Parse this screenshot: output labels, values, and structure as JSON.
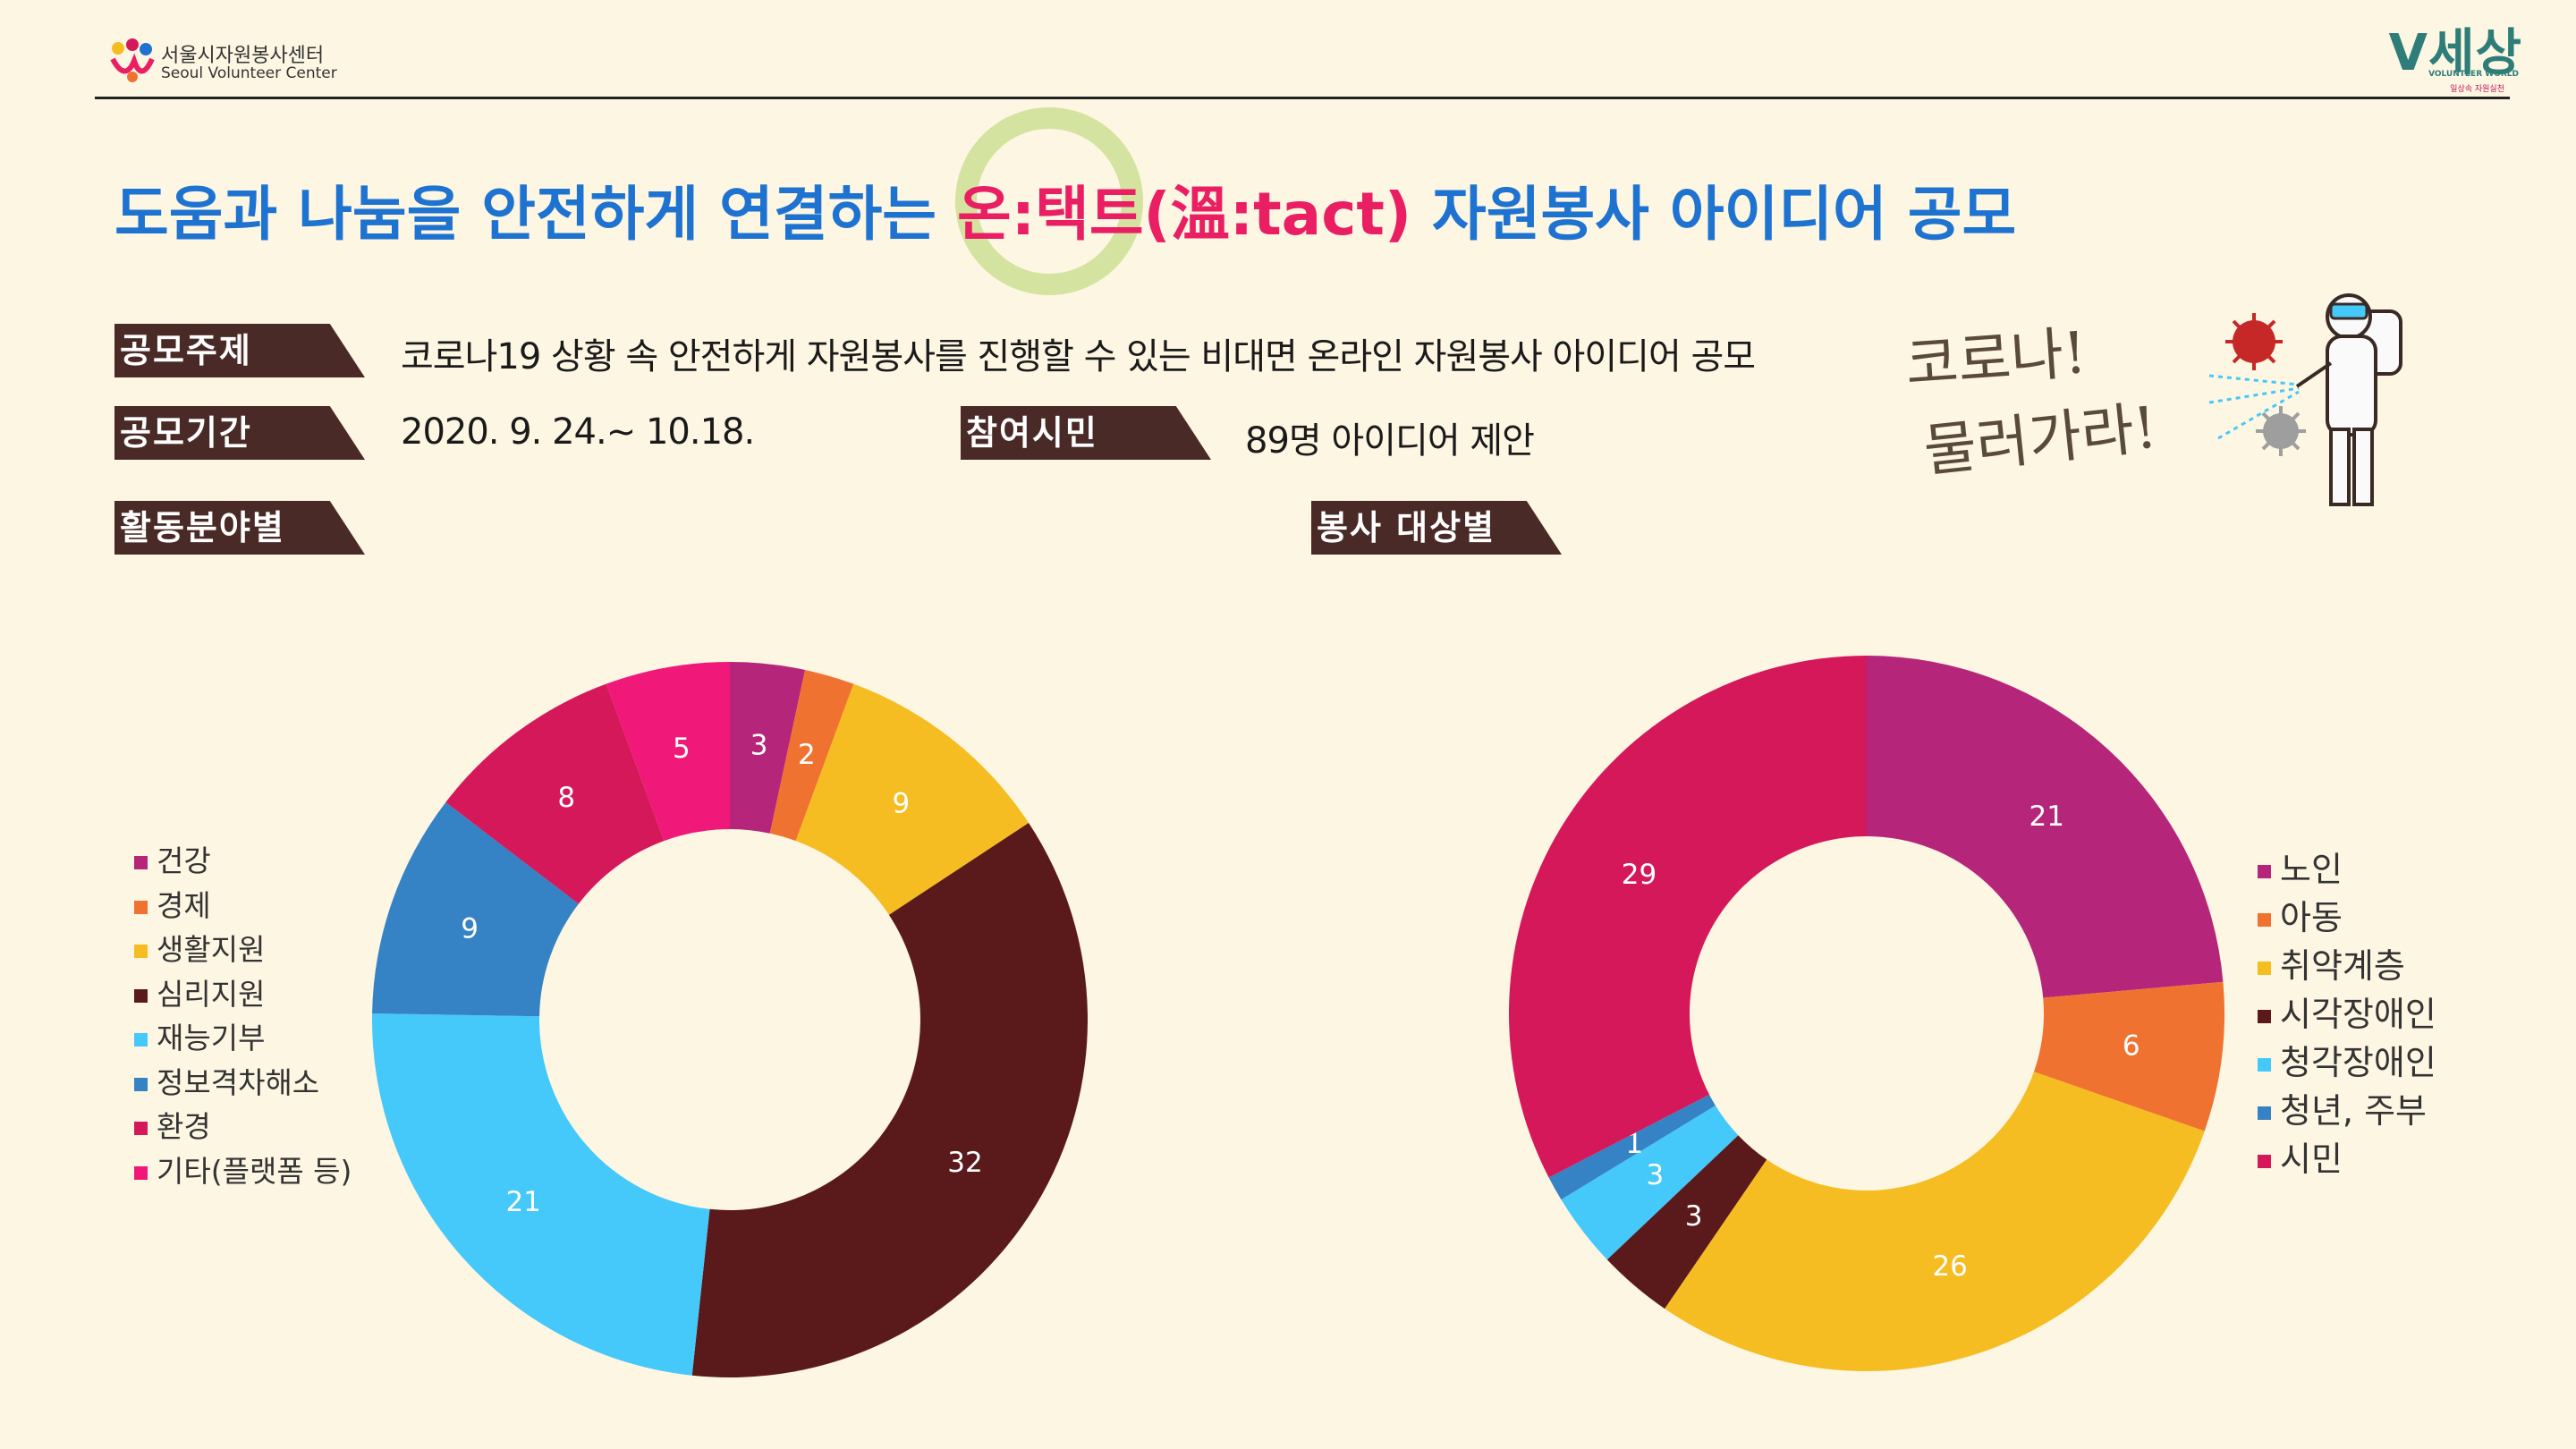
{
  "header": {
    "logo_left_ko": "서울시자원봉사센터",
    "logo_left_en": "Seoul Volunteer Center",
    "logo_right_main": "V세상",
    "logo_right_sub1": "VOLUNTEER WORLD",
    "logo_right_sub2": "일상속 자원실천"
  },
  "title": {
    "part1": "도움과 나눔을 안전하게 연결하는 ",
    "highlight": "온:택트(溫:tact)",
    "part2": " 자원봉사 아이디어 공모"
  },
  "info": {
    "theme_label": "공모주제",
    "theme_value": "코로나19 상황 속 안전하게 자원봉사를 진행할 수 있는 비대면 온라인 자원봉사 아이디어 공모",
    "period_label": "공모기간",
    "period_value": "2020. 9. 24.~ 10.18.",
    "citizens_label": "참여시민",
    "citizens_value": "89명 아이디어 제안",
    "field_label": "활동분야별",
    "target_label": "봉사 대상별"
  },
  "illustration": {
    "text_line1": "코로나!",
    "text_line2": "물러가라!"
  },
  "colors": {
    "title_blue": "#1e73d1",
    "highlight_pink": "#e91e63",
    "tag_brown": "#4a2a27",
    "background": "#fdf6e3"
  },
  "chart_data": [
    {
      "type": "pie",
      "donut": true,
      "title": "활동분야별",
      "legend_position": "left",
      "categories": [
        "건강",
        "경제",
        "생활지원",
        "심리지원",
        "재능기부",
        "정보격차해소",
        "환경",
        "기타(플랫폼 등)"
      ],
      "values": [
        3,
        2,
        9,
        32,
        21,
        9,
        8,
        5
      ],
      "colors": [
        "#b5267a",
        "#f07230",
        "#f5bd22",
        "#5a1a1c",
        "#45c8fa",
        "#3582c4",
        "#d4185a",
        "#f01878"
      ]
    },
    {
      "type": "pie",
      "donut": true,
      "title": "봉사 대상별",
      "legend_position": "right",
      "categories": [
        "노인",
        "아동",
        "취약계층",
        "시각장애인",
        "청각장애인",
        "청년, 주부",
        "시민"
      ],
      "values": [
        21,
        6,
        26,
        3,
        3,
        1,
        29
      ],
      "colors": [
        "#b5267a",
        "#f07230",
        "#f5bd22",
        "#5a1a1c",
        "#45c8fa",
        "#3582c4",
        "#d4185a"
      ]
    }
  ]
}
